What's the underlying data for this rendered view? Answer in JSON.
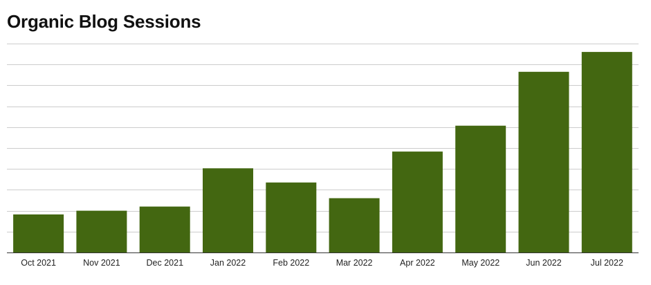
{
  "chart_data": {
    "type": "bar",
    "title": "Organic Blog Sessions",
    "xlabel": "",
    "ylabel": "",
    "categories": [
      "Oct 2021",
      "Nov 2021",
      "Dec 2021",
      "Jan 2022",
      "Feb 2022",
      "Mar 2022",
      "Apr 2022",
      "May 2022",
      "Jun 2022",
      "Jul 2022"
    ],
    "values": [
      1.82,
      2.0,
      2.2,
      4.03,
      3.35,
      2.6,
      4.83,
      6.07,
      8.65,
      9.6
    ],
    "ylim": [
      0,
      10
    ],
    "y_tick_labels_visible": false,
    "grid": true,
    "legend": "none",
    "bar_color": "#436711",
    "grid_color": "#cccccc",
    "axis_color": "#333333"
  }
}
